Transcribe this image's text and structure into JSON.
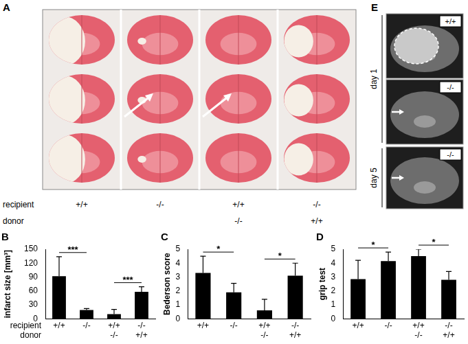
{
  "panel_a": {
    "label": "A",
    "rows": [
      {
        "label": "recipient",
        "values": [
          "+/+",
          "-/-",
          "+/+",
          "-/-"
        ]
      },
      {
        "label": "donor",
        "values": [
          null,
          null,
          "-/-",
          "+/+"
        ]
      }
    ]
  },
  "panel_e": {
    "label": "E",
    "groups": [
      {
        "label": "day 1",
        "images": [
          "+/+",
          "-/-"
        ]
      },
      {
        "label": "day 5",
        "images": [
          "-/-"
        ]
      }
    ]
  },
  "chart_data": [
    {
      "type": "bar",
      "title": "B",
      "y_label": "infarct size [mm³]",
      "row_labels": [
        "recipient",
        "donor"
      ],
      "categories": [
        [
          "+/+",
          null
        ],
        [
          "-/-",
          null
        ],
        [
          "+/+",
          "-/-"
        ],
        [
          "-/-",
          "+/+"
        ]
      ],
      "values": [
        92,
        19,
        10,
        58
      ],
      "error": [
        42,
        3,
        10,
        11
      ],
      "color": "#000000",
      "ylim": [
        0,
        150
      ],
      "yticks": [
        0,
        30,
        60,
        90,
        120,
        150
      ],
      "grid": false,
      "annotations": [
        {
          "from": 0,
          "to": 1,
          "label": "***"
        },
        {
          "from": 2,
          "to": 3,
          "label": "***"
        }
      ]
    },
    {
      "type": "bar",
      "title": "C",
      "y_label": "Bederson score",
      "categories": [
        [
          "+/+",
          null
        ],
        [
          "-/-",
          null
        ],
        [
          "+/+",
          "-/-"
        ],
        [
          "-/-",
          "+/+"
        ]
      ],
      "values": [
        3.3,
        1.9,
        0.6,
        3.1
      ],
      "error": [
        1.2,
        0.65,
        0.8,
        0.9
      ],
      "color": "#000000",
      "ylim": [
        0,
        5
      ],
      "yticks": [
        0,
        1,
        2,
        3,
        4,
        5
      ],
      "grid": false,
      "annotations": [
        {
          "from": 0,
          "to": 1,
          "label": "*"
        },
        {
          "from": 2,
          "to": 3,
          "label": "*"
        }
      ]
    },
    {
      "type": "bar",
      "title": "D",
      "y_label": "grip test",
      "categories": [
        [
          "+/+",
          null
        ],
        [
          "-/-",
          null
        ],
        [
          "+/+",
          "-/-"
        ],
        [
          "-/-",
          "+/+"
        ]
      ],
      "values": [
        2.85,
        4.15,
        4.5,
        2.8
      ],
      "error": [
        1.35,
        0.65,
        0.5,
        0.6
      ],
      "color": "#000000",
      "ylim": [
        0,
        5
      ],
      "yticks": [
        0,
        1,
        2,
        3,
        4,
        5
      ],
      "grid": false,
      "annotations": [
        {
          "from": 0,
          "to": 1,
          "label": "*"
        },
        {
          "from": 2,
          "to": 3,
          "label": "*"
        }
      ]
    }
  ]
}
